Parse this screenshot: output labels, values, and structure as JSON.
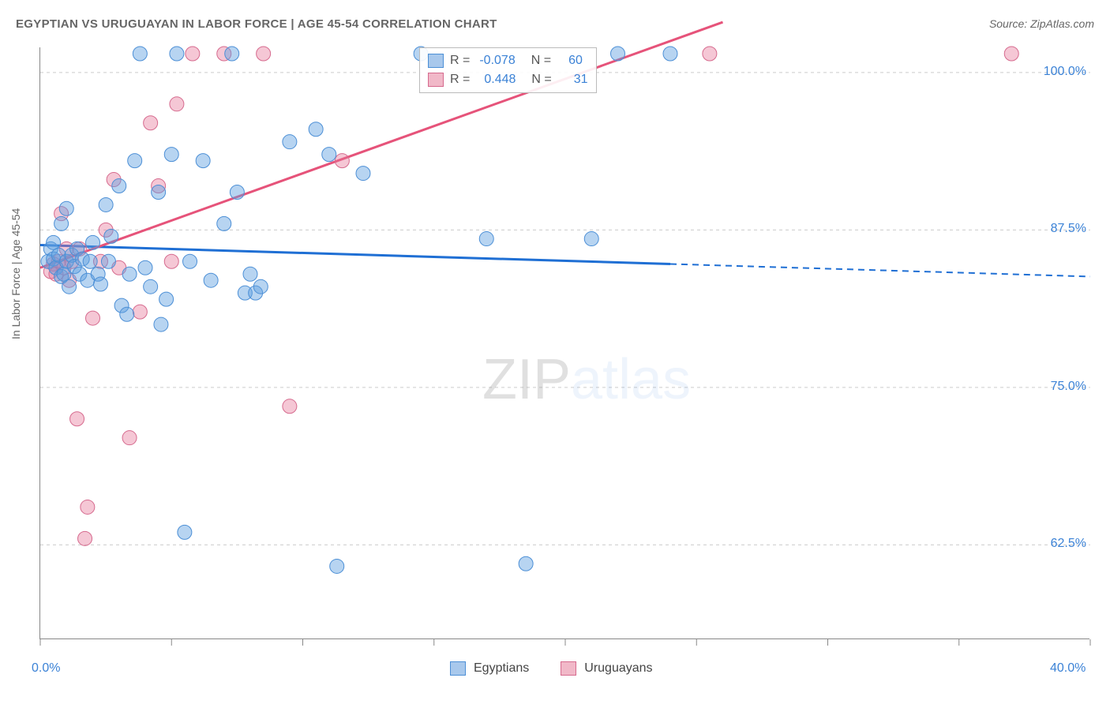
{
  "chart": {
    "title": "EGYPTIAN VS URUGUAYAN IN LABOR FORCE | AGE 45-54 CORRELATION CHART",
    "source_label": "Source: ZipAtlas.com",
    "ylabel": "In Labor Force | Age 45-54",
    "type": "scatter",
    "background_color": "#ffffff",
    "grid_color": "#cccccc",
    "axis_color": "#888888",
    "title_color": "#666666",
    "title_fontsize": 15,
    "tick_label_color": "#3b82d6",
    "tick_label_fontsize": 16,
    "xlim": [
      0,
      40
    ],
    "ylim": [
      55,
      102
    ],
    "x_ticks": [
      0,
      5,
      10,
      15,
      20,
      25,
      30,
      35,
      40
    ],
    "x_tick_labels_shown": {
      "0": "0.0%",
      "40": "40.0%"
    },
    "y_grid": [
      62.5,
      75.0,
      87.5,
      100.0
    ],
    "y_tick_labels": [
      "62.5%",
      "75.0%",
      "87.5%",
      "100.0%"
    ],
    "watermark_text_1": "ZIP",
    "watermark_text_2": "atlas",
    "series": [
      {
        "name": "Egyptians",
        "color_fill": "rgba(96,160,224,0.45)",
        "color_stroke": "#4c8fd6",
        "swatch_fill": "#a8c8ec",
        "swatch_border": "#4c8fd6",
        "R": "-0.078",
        "N": "60",
        "marker_radius": 9,
        "trend": {
          "x1": 0,
          "y1": 86.3,
          "solid_end_x": 24,
          "solid_end_y": 84.8,
          "x2": 40,
          "y2": 83.8,
          "color": "#1f6fd4",
          "width": 3
        },
        "points": [
          [
            0.3,
            85.0
          ],
          [
            0.4,
            86.0
          ],
          [
            0.5,
            86.5
          ],
          [
            0.5,
            85.2
          ],
          [
            0.6,
            84.5
          ],
          [
            0.7,
            85.5
          ],
          [
            0.8,
            83.8
          ],
          [
            0.8,
            88.0
          ],
          [
            0.9,
            84.0
          ],
          [
            1.0,
            85.0
          ],
          [
            1.0,
            89.2
          ],
          [
            1.1,
            83.0
          ],
          [
            1.2,
            85.5
          ],
          [
            1.3,
            84.6
          ],
          [
            1.4,
            86.0
          ],
          [
            1.5,
            84.0
          ],
          [
            1.6,
            85.2
          ],
          [
            1.8,
            83.5
          ],
          [
            1.9,
            85.0
          ],
          [
            2.0,
            86.5
          ],
          [
            2.2,
            84.0
          ],
          [
            2.3,
            83.2
          ],
          [
            2.5,
            89.5
          ],
          [
            2.6,
            85.0
          ],
          [
            2.7,
            87.0
          ],
          [
            3.0,
            91.0
          ],
          [
            3.1,
            81.5
          ],
          [
            3.3,
            80.8
          ],
          [
            3.4,
            84.0
          ],
          [
            3.6,
            93.0
          ],
          [
            3.8,
            101.5
          ],
          [
            4.0,
            84.5
          ],
          [
            4.2,
            83.0
          ],
          [
            4.5,
            90.5
          ],
          [
            4.6,
            80.0
          ],
          [
            4.8,
            82.0
          ],
          [
            5.0,
            93.5
          ],
          [
            5.2,
            101.5
          ],
          [
            5.5,
            63.5
          ],
          [
            5.7,
            85.0
          ],
          [
            6.2,
            93.0
          ],
          [
            6.5,
            83.5
          ],
          [
            7.0,
            88.0
          ],
          [
            7.3,
            101.5
          ],
          [
            7.5,
            90.5
          ],
          [
            7.8,
            82.5
          ],
          [
            8.0,
            84.0
          ],
          [
            8.2,
            82.5
          ],
          [
            8.4,
            83.0
          ],
          [
            9.5,
            94.5
          ],
          [
            10.5,
            95.5
          ],
          [
            11.0,
            93.5
          ],
          [
            11.3,
            60.8
          ],
          [
            12.3,
            92.0
          ],
          [
            14.5,
            101.5
          ],
          [
            17.0,
            86.8
          ],
          [
            18.5,
            61.0
          ],
          [
            21.0,
            86.8
          ],
          [
            22.0,
            101.5
          ],
          [
            24.0,
            101.5
          ]
        ]
      },
      {
        "name": "Uruguayans",
        "color_fill": "rgba(230,115,150,0.40)",
        "color_stroke": "#d66a8e",
        "swatch_fill": "#f1b8c8",
        "swatch_border": "#d66a8e",
        "R": "0.448",
        "N": "31",
        "marker_radius": 9,
        "trend": {
          "x1": 0,
          "y1": 84.5,
          "solid_end_x": 26,
          "solid_end_y": 104,
          "color": "#e6537a",
          "width": 3
        },
        "points": [
          [
            0.4,
            84.2
          ],
          [
            0.5,
            84.8
          ],
          [
            0.6,
            84.0
          ],
          [
            0.7,
            85.0
          ],
          [
            0.8,
            88.8
          ],
          [
            0.9,
            84.5
          ],
          [
            1.0,
            86.0
          ],
          [
            1.1,
            83.5
          ],
          [
            1.2,
            85.0
          ],
          [
            1.4,
            72.5
          ],
          [
            1.5,
            86.0
          ],
          [
            1.7,
            63.0
          ],
          [
            1.8,
            65.5
          ],
          [
            2.0,
            80.5
          ],
          [
            2.3,
            85.0
          ],
          [
            2.5,
            87.5
          ],
          [
            2.8,
            91.5
          ],
          [
            3.0,
            84.5
          ],
          [
            3.4,
            71.0
          ],
          [
            3.8,
            81.0
          ],
          [
            4.2,
            96.0
          ],
          [
            4.5,
            91.0
          ],
          [
            5.0,
            85.0
          ],
          [
            5.2,
            97.5
          ],
          [
            5.8,
            101.5
          ],
          [
            7.0,
            101.5
          ],
          [
            8.5,
            101.5
          ],
          [
            9.5,
            73.5
          ],
          [
            11.5,
            93.0
          ],
          [
            25.5,
            101.5
          ],
          [
            37.0,
            101.5
          ]
        ]
      }
    ],
    "legend_bottom": {
      "items": [
        "Egyptians",
        "Uruguayans"
      ]
    }
  }
}
